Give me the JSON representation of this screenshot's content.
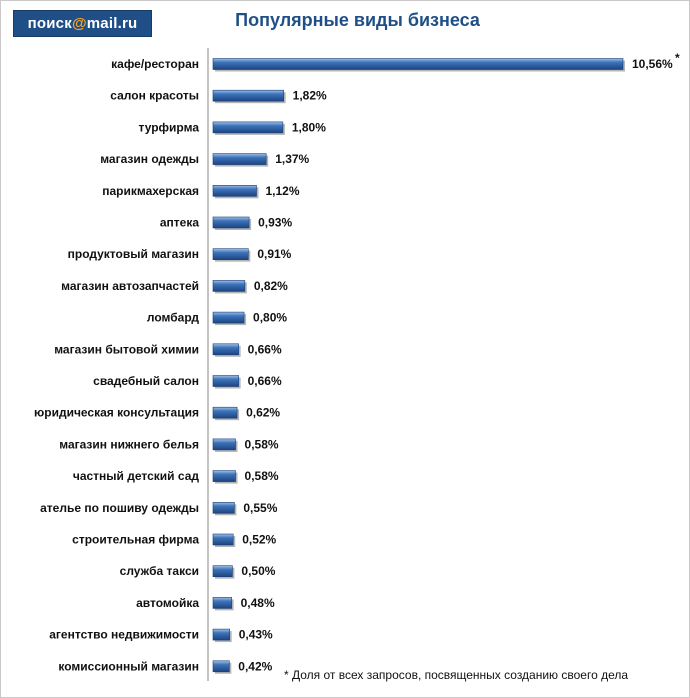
{
  "logo": {
    "text_left": "поиск",
    "text_at": "@",
    "text_right": "mail.ru"
  },
  "chart_data": {
    "type": "bar",
    "orientation": "horizontal",
    "title": "Популярные виды бизнеса",
    "xlabel": "",
    "ylabel": "",
    "xlim": [
      0,
      10.56
    ],
    "grid": false,
    "legend": "none",
    "bar_color": "#2f5f9e",
    "categories": [
      "кафе/ресторан",
      "салон красоты",
      "турфирма",
      "магазин одежды",
      "парикмахерская",
      "аптека",
      "продуктовый магазин",
      "магазин автозапчастей",
      "ломбард",
      "магазин бытовой химии",
      "свадебный салон",
      "юридическая консультация",
      "магазин нижнего белья",
      "частный детский сад",
      "ателье по пошиву одежды",
      "строительная фирма",
      "служба такси",
      "автомойка",
      "агентство недвижимости",
      "комиссионный магазин"
    ],
    "values": [
      10.56,
      1.82,
      1.8,
      1.37,
      1.12,
      0.93,
      0.91,
      0.82,
      0.8,
      0.66,
      0.66,
      0.62,
      0.58,
      0.58,
      0.55,
      0.52,
      0.5,
      0.48,
      0.43,
      0.42
    ],
    "value_labels": [
      "10,56%",
      "1,82%",
      "1,80%",
      "1,37%",
      "1,12%",
      "0,93%",
      "0,91%",
      "0,82%",
      "0,80%",
      "0,66%",
      "0,66%",
      "0,62%",
      "0,58%",
      "0,58%",
      "0,55%",
      "0,52%",
      "0,50%",
      "0,48%",
      "0,43%",
      "0,42%"
    ],
    "annotation_marker": "*",
    "footnote": "* Доля от всех запросов, посвященных созданию своего дела"
  }
}
